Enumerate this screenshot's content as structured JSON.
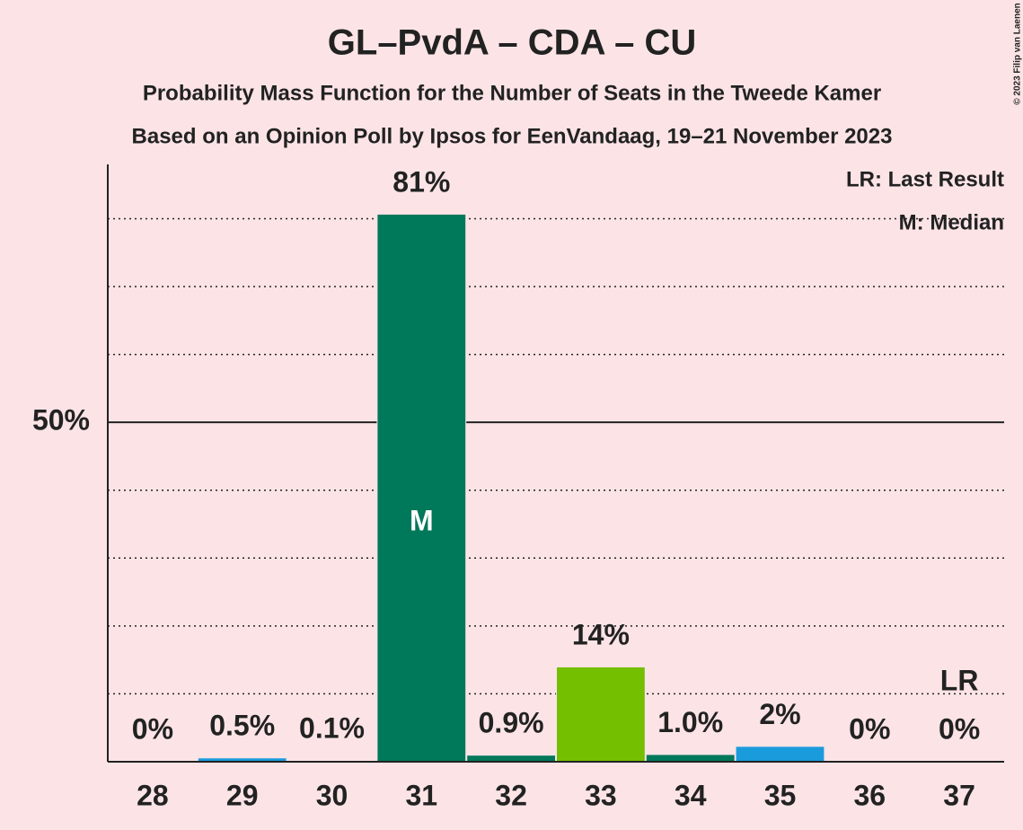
{
  "chart_data": {
    "type": "bar",
    "title": "GL–PvdA – CDA – CU",
    "subtitle": "Probability Mass Function for the Number of Seats in the Tweede Kamer",
    "subtitle2": "Based on an Opinion Poll by Ipsos for EenVandaag, 19–21 November 2023",
    "categories": [
      "28",
      "29",
      "30",
      "31",
      "32",
      "33",
      "34",
      "35",
      "36",
      "37"
    ],
    "values": [
      0,
      0.5,
      0.1,
      80.6,
      0.9,
      13.9,
      1.0,
      2.2,
      0,
      0
    ],
    "value_labels": [
      "0%",
      "0.5%",
      "0.1%",
      "81%",
      "0.9%",
      "14%",
      "1.0%",
      "2%",
      "0%",
      "0%"
    ],
    "colors": [
      "#1a9bdc",
      "#1a9bdc",
      "#1a9bdc",
      "#00785a",
      "#00785a",
      "#73bf00",
      "#00785a",
      "#1a9bdc",
      "#1a9bdc",
      "#1a9bdc"
    ],
    "ylim": [
      0,
      88
    ],
    "yticks": [
      {
        "value": 50,
        "label": "50%"
      }
    ],
    "minor_grid": [
      10,
      20,
      30,
      40,
      60,
      70,
      80
    ],
    "median": {
      "category": "31",
      "label": "M"
    },
    "last_result": {
      "category": "37",
      "label": "LR"
    },
    "legend": [
      "LR: Last Result",
      "M: Median"
    ],
    "copyright": "© 2023 Filip van Laenen"
  }
}
